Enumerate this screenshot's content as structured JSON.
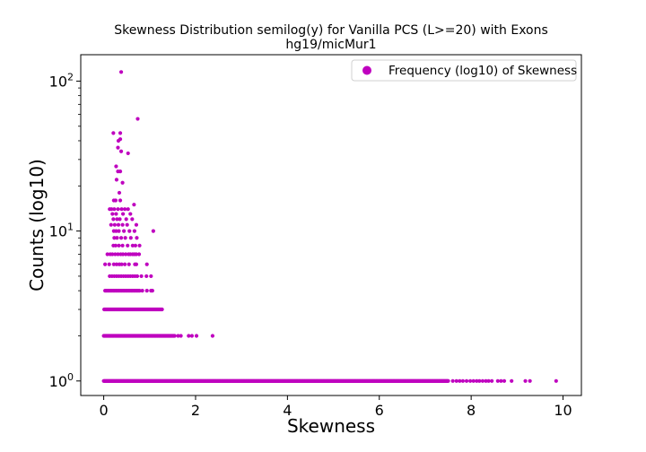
{
  "chart_data": {
    "type": "scatter",
    "title": "Skewness Distribution semilog(y) for Vanilla PCS (L>=20) with Exons",
    "subtitle": "hg19/micMur1",
    "xlabel": "Skewness",
    "ylabel": "Counts (log10)",
    "xlim": [
      -0.5,
      10.4
    ],
    "ylim": [
      0.8,
      150
    ],
    "yscale": "log",
    "x_ticks": [
      0,
      2,
      4,
      6,
      8,
      10
    ],
    "x_tick_labels": [
      "0",
      "2",
      "4",
      "6",
      "8",
      "10"
    ],
    "y_ticks": [
      1,
      10,
      100
    ],
    "y_tick_labels": [
      "10",
      "10",
      "10"
    ],
    "y_tick_exponents": [
      "0",
      "1",
      "2"
    ],
    "grid": false,
    "legend_position": "top-right",
    "colors": {
      "series": "#bf00bf",
      "axes": "#000000",
      "background": "#ffffff"
    },
    "series": [
      {
        "name": "Frequency (log10) of Skewness",
        "points": [
          [
            0.38,
            115
          ],
          [
            0.74,
            56
          ],
          [
            0.21,
            45
          ],
          [
            0.36,
            45
          ],
          [
            0.32,
            40
          ],
          [
            0.36,
            41
          ],
          [
            0.53,
            33
          ],
          [
            0.31,
            36
          ],
          [
            0.38,
            34
          ],
          [
            0.27,
            27
          ],
          [
            0.31,
            25
          ],
          [
            0.36,
            25
          ],
          [
            0.28,
            22
          ],
          [
            0.41,
            21
          ],
          [
            0.22,
            16
          ],
          [
            0.26,
            16
          ],
          [
            0.34,
            18
          ],
          [
            0.36,
            16
          ],
          [
            0.13,
            14
          ],
          [
            0.17,
            14
          ],
          [
            0.23,
            14
          ],
          [
            0.31,
            14
          ],
          [
            0.39,
            14
          ],
          [
            0.46,
            14
          ],
          [
            0.53,
            14
          ],
          [
            0.19,
            13
          ],
          [
            0.27,
            13
          ],
          [
            0.42,
            13
          ],
          [
            0.58,
            13
          ],
          [
            0.21,
            12
          ],
          [
            0.29,
            12
          ],
          [
            0.35,
            12
          ],
          [
            0.49,
            12
          ],
          [
            0.62,
            12
          ],
          [
            0.66,
            15
          ],
          [
            0.16,
            11
          ],
          [
            0.24,
            11
          ],
          [
            0.32,
            11
          ],
          [
            0.41,
            11
          ],
          [
            0.51,
            11
          ],
          [
            0.71,
            11
          ],
          [
            0.22,
            10
          ],
          [
            0.27,
            10
          ],
          [
            0.33,
            10
          ],
          [
            0.44,
            10
          ],
          [
            0.56,
            10
          ],
          [
            0.67,
            10
          ],
          [
            1.08,
            10
          ],
          [
            0.23,
            9
          ],
          [
            0.29,
            9
          ],
          [
            0.38,
            9
          ],
          [
            0.47,
            9
          ],
          [
            0.59,
            9
          ],
          [
            0.72,
            9
          ],
          [
            0.21,
            8
          ],
          [
            0.26,
            8
          ],
          [
            0.33,
            8
          ],
          [
            0.41,
            8
          ],
          [
            0.52,
            8
          ],
          [
            0.63,
            8
          ],
          [
            0.69,
            8
          ],
          [
            0.78,
            8
          ],
          [
            0.08,
            7
          ],
          [
            0.14,
            7
          ],
          [
            0.19,
            7
          ],
          [
            0.25,
            7
          ],
          [
            0.31,
            7
          ],
          [
            0.37,
            7
          ],
          [
            0.42,
            7
          ],
          [
            0.48,
            7
          ],
          [
            0.54,
            7
          ],
          [
            0.58,
            7
          ],
          [
            0.63,
            7
          ],
          [
            0.67,
            7
          ],
          [
            0.71,
            7
          ],
          [
            0.77,
            7
          ],
          [
            0.03,
            6
          ],
          [
            0.12,
            6
          ],
          [
            0.22,
            6
          ],
          [
            0.28,
            6
          ],
          [
            0.34,
            6
          ],
          [
            0.39,
            6
          ],
          [
            0.46,
            6
          ],
          [
            0.55,
            6
          ],
          [
            0.68,
            6
          ],
          [
            0.71,
            6
          ],
          [
            0.94,
            6
          ]
        ]
      }
    ],
    "dense_rows": [
      {
        "y": 5,
        "x_start": 0.13,
        "x_end": 0.73,
        "step": 0.05,
        "extra_x": [
          0.82,
          0.93,
          1.03
        ]
      },
      {
        "y": 4,
        "x_start": 0.03,
        "x_end": 0.78,
        "step": 0.03,
        "extra_x": [
          0.84,
          0.94,
          1.03,
          1.06
        ]
      },
      {
        "y": 3,
        "x_start": 0.01,
        "x_end": 1.28,
        "step": 0.02
      },
      {
        "y": 2,
        "x_start": 0.0,
        "x_end": 1.55,
        "step": 0.015,
        "extra_x": [
          1.62,
          1.68,
          1.85,
          1.92,
          2.02,
          2.37
        ]
      },
      {
        "y": 1,
        "x_start": 0.0,
        "x_end": 7.5,
        "step": 0.012,
        "extra_x": [
          7.6,
          7.68,
          7.75,
          7.82,
          7.9,
          7.98,
          8.05,
          8.12,
          8.18,
          8.25,
          8.32,
          8.38,
          8.45,
          8.58,
          8.65,
          8.72,
          8.88,
          9.18,
          9.28,
          9.85
        ]
      }
    ]
  }
}
